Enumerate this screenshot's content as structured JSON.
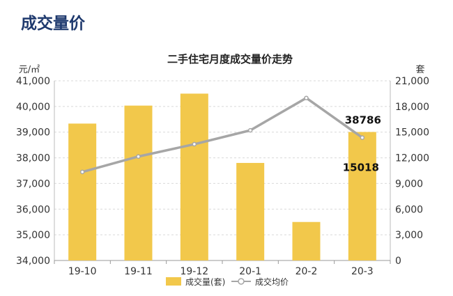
{
  "page": {
    "title": "成交量价"
  },
  "colors": {
    "bar": "#f2c84b",
    "line": "#a6a6a6",
    "marker_fill": "#ffffff",
    "axis_text": "#333333",
    "grid": "#d9d9d9"
  },
  "chart_data": {
    "type": "bar",
    "title": "二手住宅月度成交量价走势",
    "categories": [
      "19-10",
      "19-11",
      "19-12",
      "20-1",
      "20-2",
      "20-3"
    ],
    "series": [
      {
        "name": "成交量(套)",
        "type": "bar",
        "axis": "right",
        "values": [
          16000,
          18100,
          19500,
          11400,
          4500,
          15018
        ]
      },
      {
        "name": "成交均价",
        "type": "line",
        "axis": "left",
        "values": [
          37450,
          38050,
          38530,
          39070,
          40330,
          38786
        ]
      }
    ],
    "left_axis": {
      "label": "元/㎡",
      "min": 34000,
      "max": 41000,
      "ticks": [
        "34,000",
        "35,000",
        "36,000",
        "37,000",
        "38,000",
        "39,000",
        "40,000",
        "41,000"
      ]
    },
    "right_axis": {
      "label": "套",
      "min": 0,
      "max": 21000,
      "ticks": [
        "0",
        "3,000",
        "6,000",
        "9,000",
        "12,000",
        "15,000",
        "18,000",
        "21,000"
      ]
    },
    "annotations": [
      {
        "text": "38786",
        "category": "20-3",
        "series": "成交均价"
      },
      {
        "text": "15018",
        "category": "20-3",
        "series": "成交量(套)"
      }
    ],
    "legend": {
      "position": "bottom",
      "items": [
        "成交量(套)",
        "成交均价"
      ]
    },
    "grid": true
  }
}
